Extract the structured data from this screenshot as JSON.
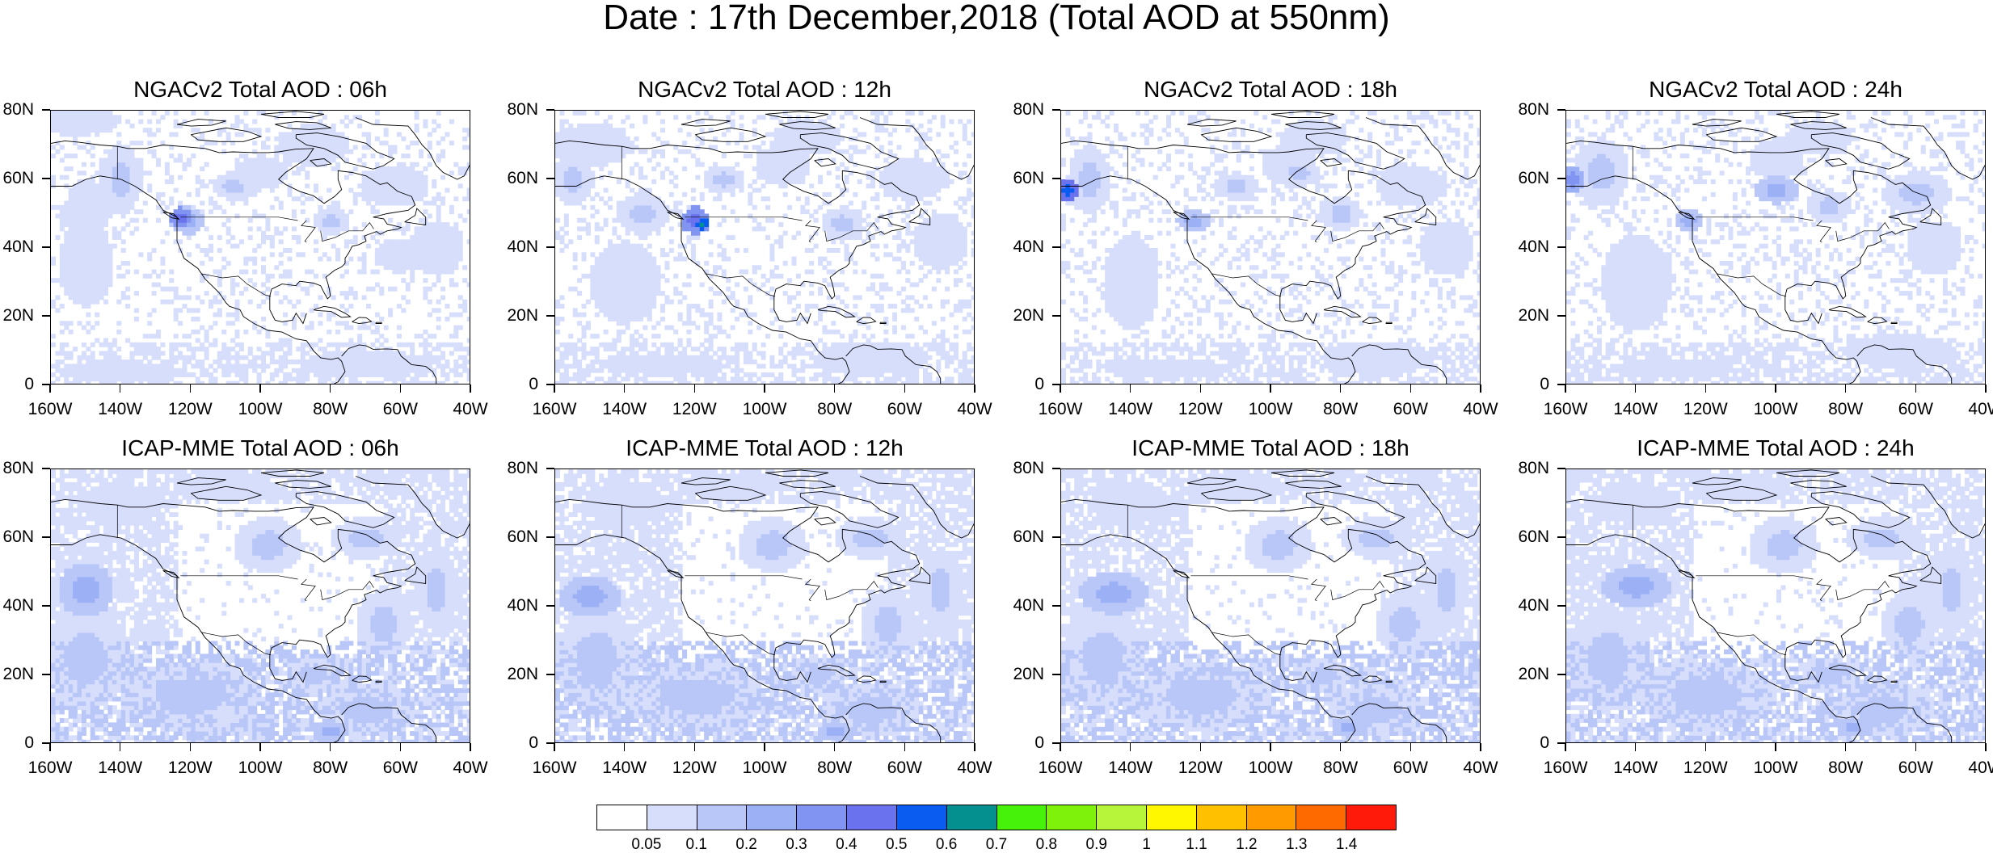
{
  "title": "Date : 17th December,2018 (Total AOD at 550nm)",
  "axes": {
    "y_ticks": [
      "80N",
      "60N",
      "40N",
      "20N",
      "0"
    ],
    "x_ticks": [
      "160W",
      "140W",
      "120W",
      "100W",
      "80W",
      "60W",
      "40W"
    ]
  },
  "panels": [
    {
      "title": "NGACv2 Total AOD : 06h",
      "model": "NGACv2",
      "forecast_hour": "06h"
    },
    {
      "title": "NGACv2 Total AOD : 12h",
      "model": "NGACv2",
      "forecast_hour": "12h"
    },
    {
      "title": "NGACv2 Total AOD : 18h",
      "model": "NGACv2",
      "forecast_hour": "18h"
    },
    {
      "title": "NGACv2 Total AOD : 24h",
      "model": "NGACv2",
      "forecast_hour": "24h"
    },
    {
      "title": "ICAP-MME Total AOD : 06h",
      "model": "ICAP-MME",
      "forecast_hour": "06h"
    },
    {
      "title": "ICAP-MME Total AOD : 12h",
      "model": "ICAP-MME",
      "forecast_hour": "12h"
    },
    {
      "title": "ICAP-MME Total AOD : 18h",
      "model": "ICAP-MME",
      "forecast_hour": "18h"
    },
    {
      "title": "ICAP-MME Total AOD : 24h",
      "model": "ICAP-MME",
      "forecast_hour": "24h"
    }
  ],
  "colorbar": {
    "labels": [
      "0.05",
      "0.1",
      "0.2",
      "0.3",
      "0.4",
      "0.5",
      "0.6",
      "0.7",
      "0.8",
      "0.9",
      "1",
      "1.1",
      "1.2",
      "1.3",
      "1.4"
    ],
    "colors": [
      "#ffffff",
      "#d6defc",
      "#b8c6f8",
      "#9cb0f6",
      "#8294f2",
      "#6a72ee",
      "#0a5cf0",
      "#03908f",
      "#47f20a",
      "#7ef20a",
      "#b6f53a",
      "#fff700",
      "#ffc000",
      "#ff9a00",
      "#ff6a00",
      "#ff1a0a"
    ]
  }
}
